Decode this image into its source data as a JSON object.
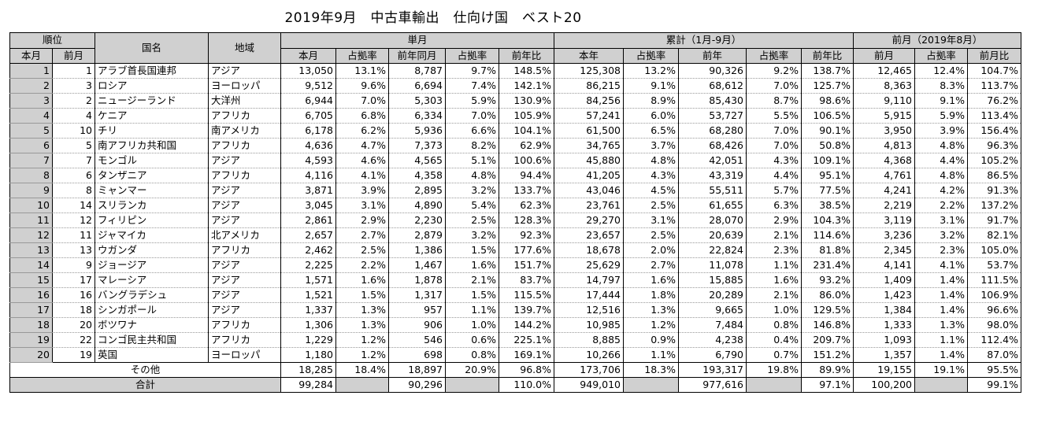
{
  "title": "2019年9月　中古車輸出　仕向け国　ベスト20",
  "headers": {
    "rank": "順位",
    "country": "国名",
    "region": "地域",
    "monthly": "単月",
    "cumulative": "累計（1月-9月）",
    "prev_month": "前月（2019年8月）",
    "this_month_rank": "本月",
    "prev_month_rank": "前月",
    "m_this": "本月",
    "m_share": "占拠率",
    "m_lastyear": "前年同月",
    "m_share2": "占拠率",
    "m_yoy": "前年比",
    "c_this": "本年",
    "c_share": "占拠率",
    "c_lastyear": "前年",
    "c_share2": "占拠率",
    "c_yoy": "前年比",
    "p_prev": "前月",
    "p_share": "占拠率",
    "p_ratio": "前月比"
  },
  "rows": [
    [
      "1",
      "1",
      "アラブ首長国連邦",
      "アジア",
      "13,050",
      "13.1%",
      "8,787",
      "9.7%",
      "148.5%",
      "125,308",
      "13.2%",
      "90,326",
      "9.2%",
      "138.7%",
      "12,465",
      "12.4%",
      "104.7%"
    ],
    [
      "2",
      "3",
      "ロシア",
      "ヨーロッパ",
      "9,512",
      "9.6%",
      "6,694",
      "7.4%",
      "142.1%",
      "86,215",
      "9.1%",
      "68,612",
      "7.0%",
      "125.7%",
      "8,363",
      "8.3%",
      "113.7%"
    ],
    [
      "3",
      "2",
      "ニュージーランド",
      "大洋州",
      "6,944",
      "7.0%",
      "5,303",
      "5.9%",
      "130.9%",
      "84,256",
      "8.9%",
      "85,430",
      "8.7%",
      "98.6%",
      "9,110",
      "9.1%",
      "76.2%"
    ],
    [
      "4",
      "4",
      "ケニア",
      "アフリカ",
      "6,705",
      "6.8%",
      "6,334",
      "7.0%",
      "105.9%",
      "57,241",
      "6.0%",
      "53,727",
      "5.5%",
      "106.5%",
      "5,915",
      "5.9%",
      "113.4%"
    ],
    [
      "5",
      "10",
      "チリ",
      "南アメリカ",
      "6,178",
      "6.2%",
      "5,936",
      "6.6%",
      "104.1%",
      "61,500",
      "6.5%",
      "68,280",
      "7.0%",
      "90.1%",
      "3,950",
      "3.9%",
      "156.4%"
    ],
    [
      "6",
      "5",
      "南アフリカ共和国",
      "アフリカ",
      "4,636",
      "4.7%",
      "7,373",
      "8.2%",
      "62.9%",
      "34,765",
      "3.7%",
      "68,426",
      "7.0%",
      "50.8%",
      "4,813",
      "4.8%",
      "96.3%"
    ],
    [
      "7",
      "7",
      "モンゴル",
      "アジア",
      "4,593",
      "4.6%",
      "4,565",
      "5.1%",
      "100.6%",
      "45,880",
      "4.8%",
      "42,051",
      "4.3%",
      "109.1%",
      "4,368",
      "4.4%",
      "105.2%"
    ],
    [
      "8",
      "6",
      "タンザニア",
      "アフリカ",
      "4,116",
      "4.1%",
      "4,358",
      "4.8%",
      "94.4%",
      "41,205",
      "4.3%",
      "43,319",
      "4.4%",
      "95.1%",
      "4,761",
      "4.8%",
      "86.5%"
    ],
    [
      "9",
      "8",
      "ミャンマー",
      "アジア",
      "3,871",
      "3.9%",
      "2,895",
      "3.2%",
      "133.7%",
      "43,046",
      "4.5%",
      "55,511",
      "5.7%",
      "77.5%",
      "4,241",
      "4.2%",
      "91.3%"
    ],
    [
      "10",
      "14",
      "スリランカ",
      "アジア",
      "3,045",
      "3.1%",
      "4,890",
      "5.4%",
      "62.3%",
      "23,761",
      "2.5%",
      "61,655",
      "6.3%",
      "38.5%",
      "2,219",
      "2.2%",
      "137.2%"
    ],
    [
      "11",
      "12",
      "フィリピン",
      "アジア",
      "2,861",
      "2.9%",
      "2,230",
      "2.5%",
      "128.3%",
      "29,270",
      "3.1%",
      "28,070",
      "2.9%",
      "104.3%",
      "3,119",
      "3.1%",
      "91.7%"
    ],
    [
      "12",
      "11",
      "ジャマイカ",
      "北アメリカ",
      "2,657",
      "2.7%",
      "2,879",
      "3.2%",
      "92.3%",
      "23,657",
      "2.5%",
      "20,639",
      "2.1%",
      "114.6%",
      "3,236",
      "3.2%",
      "82.1%"
    ],
    [
      "13",
      "13",
      "ウガンダ",
      "アフリカ",
      "2,462",
      "2.5%",
      "1,386",
      "1.5%",
      "177.6%",
      "18,678",
      "2.0%",
      "22,824",
      "2.3%",
      "81.8%",
      "2,345",
      "2.3%",
      "105.0%"
    ],
    [
      "14",
      "9",
      "ジョージア",
      "アジア",
      "2,225",
      "2.2%",
      "1,467",
      "1.6%",
      "151.7%",
      "25,629",
      "2.7%",
      "11,078",
      "1.1%",
      "231.4%",
      "4,141",
      "4.1%",
      "53.7%"
    ],
    [
      "15",
      "17",
      "マレーシア",
      "アジア",
      "1,571",
      "1.6%",
      "1,878",
      "2.1%",
      "83.7%",
      "14,797",
      "1.6%",
      "15,885",
      "1.6%",
      "93.2%",
      "1,409",
      "1.4%",
      "111.5%"
    ],
    [
      "16",
      "16",
      "バングラデシュ",
      "アジア",
      "1,521",
      "1.5%",
      "1,317",
      "1.5%",
      "115.5%",
      "17,444",
      "1.8%",
      "20,289",
      "2.1%",
      "86.0%",
      "1,423",
      "1.4%",
      "106.9%"
    ],
    [
      "17",
      "18",
      "シンガポール",
      "アジア",
      "1,337",
      "1.3%",
      "957",
      "1.1%",
      "139.7%",
      "12,516",
      "1.3%",
      "9,665",
      "1.0%",
      "129.5%",
      "1,384",
      "1.4%",
      "96.6%"
    ],
    [
      "18",
      "20",
      "ボツワナ",
      "アフリカ",
      "1,306",
      "1.3%",
      "906",
      "1.0%",
      "144.2%",
      "10,985",
      "1.2%",
      "7,484",
      "0.8%",
      "146.8%",
      "1,333",
      "1.3%",
      "98.0%"
    ],
    [
      "19",
      "22",
      "コンゴ民主共和国",
      "アフリカ",
      "1,229",
      "1.2%",
      "546",
      "0.6%",
      "225.1%",
      "8,885",
      "0.9%",
      "4,238",
      "0.4%",
      "209.7%",
      "1,093",
      "1.1%",
      "112.4%"
    ],
    [
      "20",
      "19",
      "英国",
      "ヨーロッパ",
      "1,180",
      "1.2%",
      "698",
      "0.8%",
      "169.1%",
      "10,266",
      "1.1%",
      "6,790",
      "0.7%",
      "151.2%",
      "1,357",
      "1.4%",
      "87.0%"
    ]
  ],
  "others": {
    "label": "その他",
    "values": [
      "18,285",
      "18.4%",
      "18,897",
      "20.9%",
      "96.8%",
      "173,706",
      "18.3%",
      "193,317",
      "19.8%",
      "89.9%",
      "19,155",
      "19.1%",
      "95.5%"
    ]
  },
  "total": {
    "label": "合計",
    "values": [
      "99,284",
      "",
      "90,296",
      "",
      "110.0%",
      "949,010",
      "",
      "977,616",
      "",
      "97.1%",
      "100,200",
      "",
      "99.1%"
    ]
  }
}
